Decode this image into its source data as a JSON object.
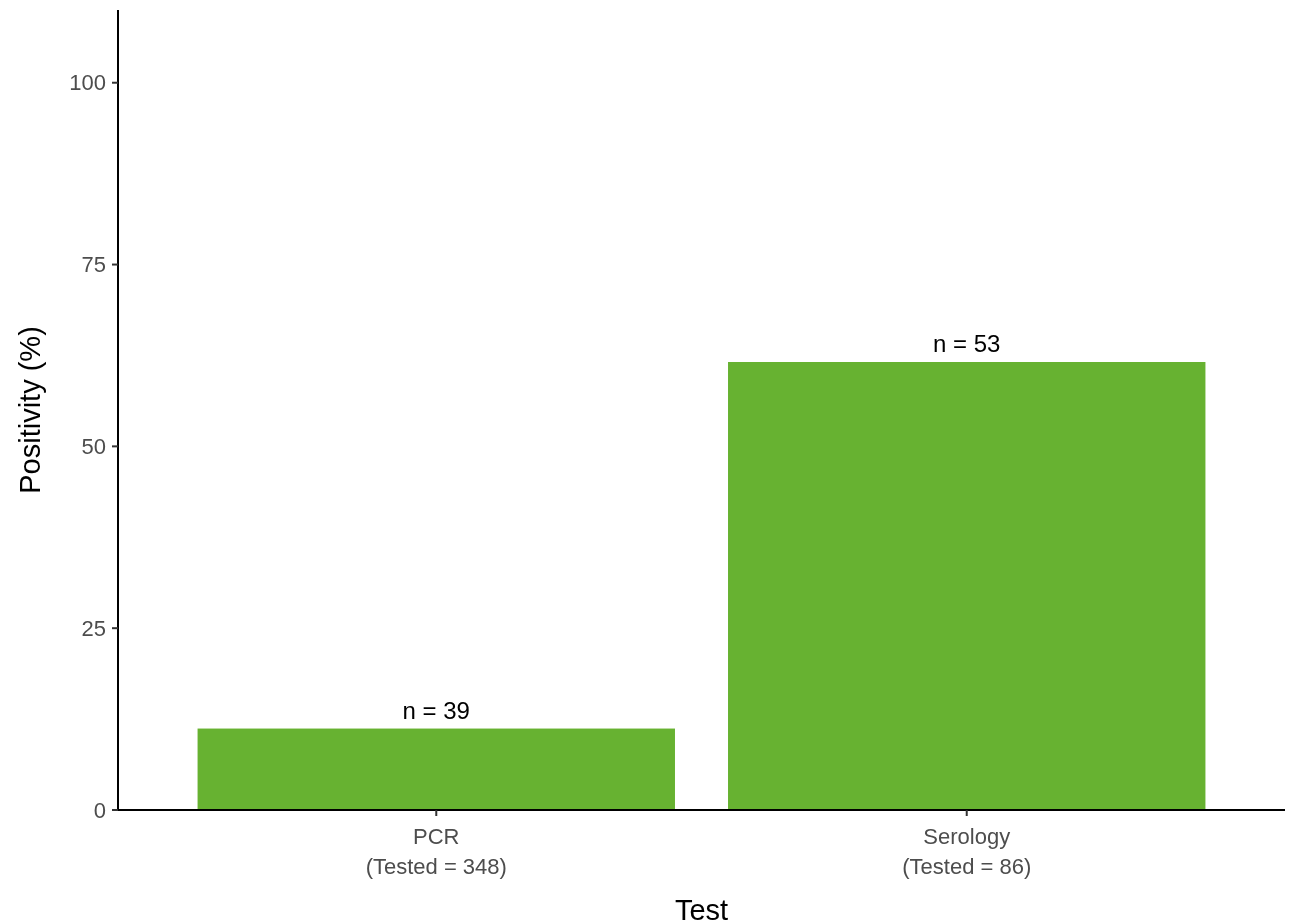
{
  "chart_data": {
    "type": "bar",
    "xlabel": "Test",
    "ylabel": "Positivity (%)",
    "categories": [
      "PCR\n(Tested = 348)",
      "Serology\n(Tested = 86)"
    ],
    "values": [
      11.2,
      61.6
    ],
    "annotations": [
      {
        "text": "n = 39",
        "x": "PCR\n(Tested = 348)",
        "y": 11.2
      },
      {
        "text": "n = 53",
        "x": "Serology\n(Tested = 86)",
        "y": 61.6
      }
    ],
    "color": "#67b231",
    "ylim": [
      0,
      110
    ],
    "yticks": [
      0,
      25,
      50,
      75,
      100
    ],
    "grid": false
  }
}
